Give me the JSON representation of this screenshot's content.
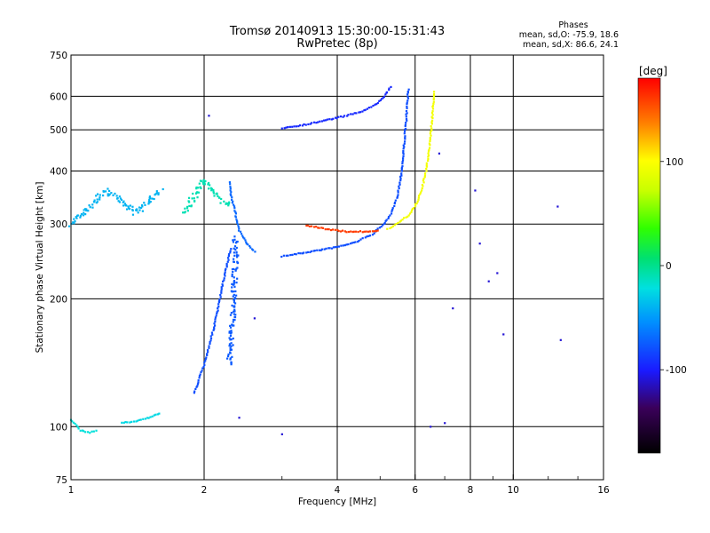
{
  "chart_data": {
    "type": "scatter",
    "title": "Tromsø 20140913 15:30:00-15:31:43",
    "subtitle": "RwPretec (8p)",
    "xlabel": "Frequency [MHz]",
    "ylabel": "Stationary phase Virtual Height [km]",
    "x_scale": "log",
    "y_scale": "log",
    "xlim": [
      1,
      16
    ],
    "ylim": [
      75,
      750
    ],
    "x_ticks": [
      "1",
      "2",
      "4",
      "6",
      "8",
      "10",
      "16"
    ],
    "y_ticks": [
      "75",
      "100",
      "200",
      "300",
      "400",
      "500",
      "600",
      "750"
    ],
    "grid": true,
    "phase_stats": {
      "heading": "Phases",
      "line_o": "mean, sd,O: -75.9, 18.6",
      "line_x": "mean, sd,X:  86.6, 24.1"
    },
    "colorbar": {
      "unit": "[deg]",
      "range": [
        -180,
        180
      ],
      "ticks": [
        "100",
        "0",
        "-100"
      ]
    },
    "traces": [
      {
        "role": "o-trace-main",
        "phase": -80,
        "points": [
          [
            3.0,
            252
          ],
          [
            3.3,
            256
          ],
          [
            3.6,
            260
          ],
          [
            4.0,
            265
          ],
          [
            4.4,
            272
          ],
          [
            4.8,
            284
          ],
          [
            5.1,
            300
          ],
          [
            5.3,
            318
          ],
          [
            5.45,
            345
          ],
          [
            5.55,
            380
          ],
          [
            5.62,
            420
          ],
          [
            5.67,
            470
          ],
          [
            5.72,
            520
          ],
          [
            5.76,
            580
          ],
          [
            5.8,
            630
          ]
        ]
      },
      {
        "role": "o-trace-upper",
        "phase": -95,
        "points": [
          [
            3.0,
            505
          ],
          [
            3.4,
            515
          ],
          [
            3.8,
            528
          ],
          [
            4.2,
            540
          ],
          [
            4.6,
            555
          ],
          [
            4.9,
            575
          ],
          [
            5.1,
            600
          ],
          [
            5.25,
            625
          ],
          [
            5.3,
            640
          ]
        ]
      },
      {
        "role": "o-trace-lower-cusp",
        "phase": -70,
        "points": [
          [
            2.6,
            258
          ],
          [
            2.5,
            270
          ],
          [
            2.4,
            290
          ],
          [
            2.35,
            320
          ],
          [
            2.3,
            350
          ],
          [
            2.28,
            380
          ]
        ]
      },
      {
        "role": "o-column-2.3",
        "phase": -75,
        "points": [
          [
            2.28,
            140
          ],
          [
            2.3,
            160
          ],
          [
            2.32,
            180
          ],
          [
            2.33,
            200
          ],
          [
            2.34,
            220
          ],
          [
            2.35,
            240
          ],
          [
            2.36,
            260
          ],
          [
            2.34,
            280
          ]
        ]
      },
      {
        "role": "o-rise-2.0",
        "phase": -80,
        "points": [
          [
            1.9,
            120
          ],
          [
            1.95,
            130
          ],
          [
            2.0,
            140
          ],
          [
            2.05,
            155
          ],
          [
            2.1,
            170
          ],
          [
            2.15,
            190
          ],
          [
            2.2,
            215
          ],
          [
            2.25,
            240
          ],
          [
            2.3,
            265
          ]
        ]
      },
      {
        "role": "x-trace-main",
        "phase": 95,
        "points": [
          [
            5.2,
            292
          ],
          [
            5.5,
            302
          ],
          [
            5.8,
            315
          ],
          [
            6.0,
            330
          ],
          [
            6.2,
            360
          ],
          [
            6.35,
            400
          ],
          [
            6.45,
            450
          ],
          [
            6.52,
            500
          ],
          [
            6.58,
            560
          ],
          [
            6.62,
            620
          ]
        ]
      },
      {
        "role": "x-trace-cusp",
        "phase": 160,
        "points": [
          [
            3.4,
            298
          ],
          [
            3.8,
            292
          ],
          [
            4.2,
            288
          ],
          [
            4.6,
            288
          ],
          [
            5.0,
            290
          ]
        ]
      },
      {
        "role": "low-echo-1.0",
        "phase": -20,
        "points": [
          [
            1.0,
            104
          ],
          [
            1.05,
            98
          ],
          [
            1.1,
            97
          ],
          [
            1.15,
            98
          ]
        ]
      },
      {
        "role": "low-echo-1.35",
        "phase": -25,
        "points": [
          [
            1.3,
            102
          ],
          [
            1.4,
            103
          ],
          [
            1.5,
            105
          ],
          [
            1.6,
            108
          ]
        ]
      },
      {
        "role": "e-layer-diffuse-1",
        "phase": -40,
        "points": [
          [
            1.0,
            300
          ],
          [
            1.1,
            330
          ],
          [
            1.2,
            360
          ],
          [
            1.3,
            340
          ],
          [
            1.4,
            320
          ],
          [
            1.5,
            340
          ],
          [
            1.6,
            360
          ]
        ]
      },
      {
        "role": "e-layer-diffuse-2",
        "phase": -10,
        "points": [
          [
            1.8,
            320
          ],
          [
            1.9,
            350
          ],
          [
            2.0,
            380
          ],
          [
            2.1,
            360
          ],
          [
            2.2,
            340
          ],
          [
            2.3,
            330
          ]
        ]
      },
      {
        "role": "sporadic",
        "phase": -110,
        "points": [
          [
            8.2,
            360
          ],
          [
            8.8,
            220
          ],
          [
            9.2,
            230
          ],
          [
            9.5,
            165
          ],
          [
            8.4,
            270
          ],
          [
            6.5,
            100
          ],
          [
            7.0,
            102
          ],
          [
            7.3,
            190
          ],
          [
            12.6,
            330
          ],
          [
            12.8,
            160
          ],
          [
            6.8,
            440
          ],
          [
            3.0,
            96
          ],
          [
            2.05,
            540
          ],
          [
            2.4,
            105
          ],
          [
            2.6,
            180
          ]
        ]
      }
    ]
  }
}
